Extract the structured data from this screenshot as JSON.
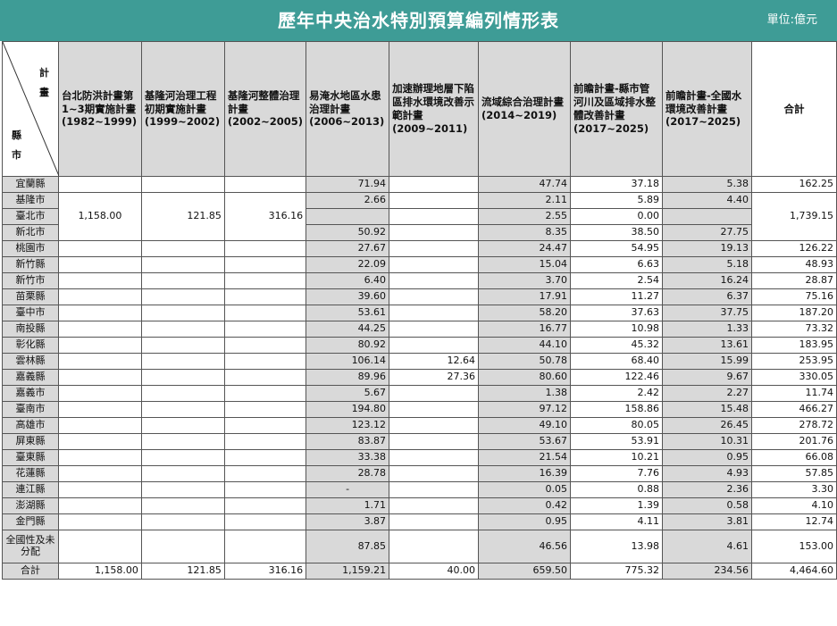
{
  "header": {
    "title": "歷年中央治水特別預算編列情形表",
    "unit": "單位:億元"
  },
  "corner": {
    "top_chars": [
      "計",
      "畫"
    ],
    "bottom_chars": [
      "縣",
      "市"
    ]
  },
  "columns": [
    "台北防洪計畫第1~3期實施計畫(1982~1999)",
    "基隆河治理工程初期實施計畫(1999~2002)",
    "基隆河整體治理計畫(2002~2005)",
    "易淹水地區水患治理計畫(2006~2013)",
    "加速辦理地層下陷區排水環境改善示範計畫(2009~2011)",
    "流域綜合治理計畫(2014~2019)",
    "前瞻計畫-縣市管河川及區域排水整體改善計畫(2017~2025)",
    "前瞻計畫-全國水環境改善計畫(2017~2025)",
    "合計"
  ],
  "rows": [
    {
      "county": "宜蘭縣",
      "flood": "71.94",
      "subsidence": "",
      "basin": "47.74",
      "county_river": "37.18",
      "water_env": "5.38",
      "total": "162.25"
    },
    {
      "county": "基隆市",
      "flood": "2.66",
      "subsidence": "",
      "basin": "2.11",
      "county_river": "5.89",
      "water_env": "4.40",
      "total": ""
    },
    {
      "county": "臺北市",
      "flood": "",
      "subsidence": "",
      "basin": "2.55",
      "county_river": "0.00",
      "water_env": "",
      "total": ""
    },
    {
      "county": "新北市",
      "flood": "50.92",
      "subsidence": "",
      "basin": "8.35",
      "county_river": "38.50",
      "water_env": "27.75",
      "total": ""
    },
    {
      "county": "桃園市",
      "flood": "27.67",
      "subsidence": "",
      "basin": "24.47",
      "county_river": "54.95",
      "water_env": "19.13",
      "total": "126.22"
    },
    {
      "county": "新竹縣",
      "flood": "22.09",
      "subsidence": "",
      "basin": "15.04",
      "county_river": "6.63",
      "water_env": "5.18",
      "total": "48.93"
    },
    {
      "county": "新竹市",
      "flood": "6.40",
      "subsidence": "",
      "basin": "3.70",
      "county_river": "2.54",
      "water_env": "16.24",
      "total": "28.87"
    },
    {
      "county": "苗栗縣",
      "flood": "39.60",
      "subsidence": "",
      "basin": "17.91",
      "county_river": "11.27",
      "water_env": "6.37",
      "total": "75.16"
    },
    {
      "county": "臺中市",
      "flood": "53.61",
      "subsidence": "",
      "basin": "58.20",
      "county_river": "37.63",
      "water_env": "37.75",
      "total": "187.20"
    },
    {
      "county": "南投縣",
      "flood": "44.25",
      "subsidence": "",
      "basin": "16.77",
      "county_river": "10.98",
      "water_env": "1.33",
      "total": "73.32"
    },
    {
      "county": "彰化縣",
      "flood": "80.92",
      "subsidence": "",
      "basin": "44.10",
      "county_river": "45.32",
      "water_env": "13.61",
      "total": "183.95"
    },
    {
      "county": "雲林縣",
      "flood": "106.14",
      "subsidence": "12.64",
      "basin": "50.78",
      "county_river": "68.40",
      "water_env": "15.99",
      "total": "253.95"
    },
    {
      "county": "嘉義縣",
      "flood": "89.96",
      "subsidence": "27.36",
      "basin": "80.60",
      "county_river": "122.46",
      "water_env": "9.67",
      "total": "330.05"
    },
    {
      "county": "嘉義市",
      "flood": "5.67",
      "subsidence": "",
      "basin": "1.38",
      "county_river": "2.42",
      "water_env": "2.27",
      "total": "11.74"
    },
    {
      "county": "臺南市",
      "flood": "194.80",
      "subsidence": "",
      "basin": "97.12",
      "county_river": "158.86",
      "water_env": "15.48",
      "total": "466.27"
    },
    {
      "county": "高雄市",
      "flood": "123.12",
      "subsidence": "",
      "basin": "49.10",
      "county_river": "80.05",
      "water_env": "26.45",
      "total": "278.72"
    },
    {
      "county": "屏東縣",
      "flood": "83.87",
      "subsidence": "",
      "basin": "53.67",
      "county_river": "53.91",
      "water_env": "10.31",
      "total": "201.76"
    },
    {
      "county": "臺東縣",
      "flood": "33.38",
      "subsidence": "",
      "basin": "21.54",
      "county_river": "10.21",
      "water_env": "0.95",
      "total": "66.08"
    },
    {
      "county": "花蓮縣",
      "flood": "28.78",
      "subsidence": "",
      "basin": "16.39",
      "county_river": "7.76",
      "water_env": "4.93",
      "total": "57.85"
    },
    {
      "county": "連江縣",
      "flood": "-",
      "subsidence": "",
      "basin": "0.05",
      "county_river": "0.88",
      "water_env": "2.36",
      "total": "3.30"
    },
    {
      "county": "澎湖縣",
      "flood": "1.71",
      "subsidence": "",
      "basin": "0.42",
      "county_river": "1.39",
      "water_env": "0.58",
      "total": "4.10"
    },
    {
      "county": "金門縣",
      "flood": "3.87",
      "subsidence": "",
      "basin": "0.95",
      "county_river": "4.11",
      "water_env": "3.81",
      "total": "12.74"
    },
    {
      "county": "全國性及未分配",
      "flood": "87.85",
      "subsidence": "",
      "basin": "46.56",
      "county_river": "13.98",
      "water_env": "4.61",
      "total": "153.00"
    }
  ],
  "merged": {
    "taipei_flood": "1,158.00",
    "keelung_initial": "121.85",
    "keelung_overall": "316.16",
    "north_total": "1,739.15"
  },
  "totals": {
    "label": "合計",
    "taipei_flood": "1,158.00",
    "keelung_initial": "121.85",
    "keelung_overall": "316.16",
    "flood": "1,159.21",
    "subsidence": "40.00",
    "basin": "659.50",
    "county_river": "775.32",
    "water_env": "234.56",
    "total": "4,464.60"
  },
  "colors": {
    "title_bar": "#3e9c96",
    "gray_cell": "#d9d9d9"
  }
}
